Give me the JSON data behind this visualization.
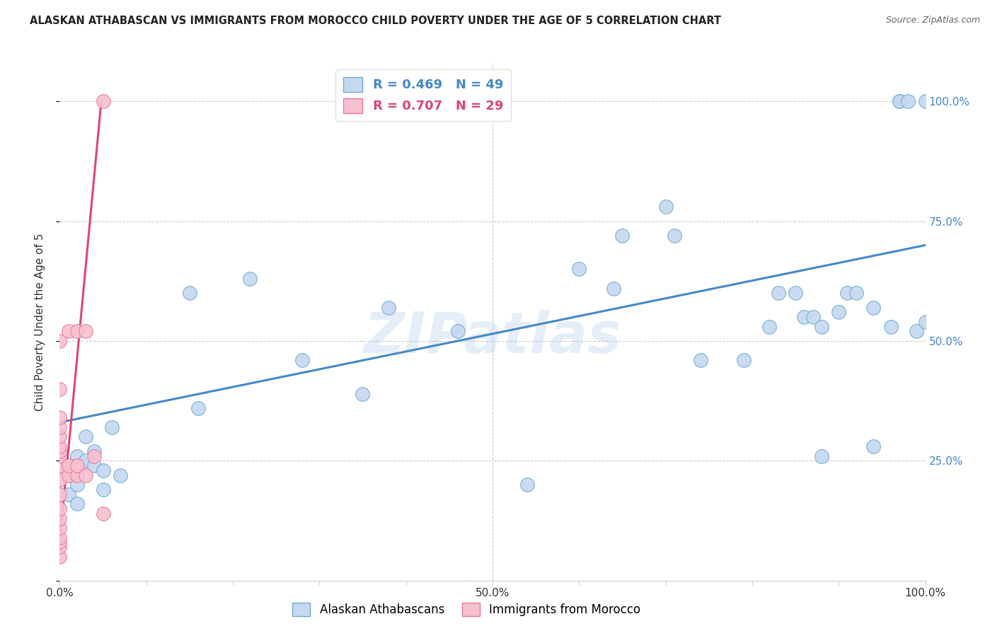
{
  "title": "ALASKAN ATHABASCAN VS IMMIGRANTS FROM MOROCCO CHILD POVERTY UNDER THE AGE OF 5 CORRELATION CHART",
  "source": "Source: ZipAtlas.com",
  "ylabel": "Child Poverty Under the Age of 5",
  "xlabel": "",
  "xlim": [
    0,
    1.0
  ],
  "ylim": [
    0,
    1.08
  ],
  "blue_R": 0.469,
  "blue_N": 49,
  "pink_R": 0.707,
  "pink_N": 29,
  "blue_color": "#c5d8f0",
  "pink_color": "#f7c0ce",
  "blue_edge_color": "#6aaad4",
  "pink_edge_color": "#e87a97",
  "blue_line_color": "#4488cc",
  "pink_line_color": "#dd4477",
  "watermark": "ZIPatlas",
  "legend_label_blue": "Alaskan Athabascans",
  "legend_label_pink": "Immigrants from Morocco",
  "blue_scatter_x": [
    0.01,
    0.01,
    0.01,
    0.02,
    0.02,
    0.02,
    0.02,
    0.03,
    0.03,
    0.04,
    0.04,
    0.05,
    0.05,
    0.06,
    0.07,
    0.15,
    0.16,
    0.22,
    0.28,
    0.35,
    0.38,
    0.46,
    0.54,
    0.6,
    0.64,
    0.65,
    0.7,
    0.71,
    0.74,
    0.79,
    0.82,
    0.83,
    0.85,
    0.86,
    0.87,
    0.88,
    0.88,
    0.9,
    0.91,
    0.92,
    0.94,
    0.94,
    0.96,
    0.97,
    0.97,
    0.98,
    0.99,
    1.0,
    1.0
  ],
  "blue_scatter_y": [
    0.24,
    0.22,
    0.18,
    0.26,
    0.22,
    0.2,
    0.16,
    0.3,
    0.25,
    0.24,
    0.27,
    0.23,
    0.19,
    0.32,
    0.22,
    0.6,
    0.36,
    0.63,
    0.46,
    0.39,
    0.57,
    0.52,
    0.2,
    0.65,
    0.61,
    0.72,
    0.78,
    0.72,
    0.46,
    0.46,
    0.53,
    0.6,
    0.6,
    0.55,
    0.55,
    0.26,
    0.53,
    0.56,
    0.6,
    0.6,
    0.57,
    0.28,
    0.53,
    1.0,
    1.0,
    1.0,
    0.52,
    1.0,
    0.54
  ],
  "pink_scatter_x": [
    0.0,
    0.0,
    0.0,
    0.0,
    0.0,
    0.0,
    0.0,
    0.0,
    0.0,
    0.0,
    0.0,
    0.0,
    0.0,
    0.0,
    0.0,
    0.0,
    0.0,
    0.0,
    0.01,
    0.01,
    0.01,
    0.02,
    0.02,
    0.02,
    0.03,
    0.03,
    0.04,
    0.05,
    0.05
  ],
  "pink_scatter_y": [
    0.05,
    0.07,
    0.08,
    0.09,
    0.11,
    0.13,
    0.15,
    0.18,
    0.21,
    0.24,
    0.26,
    0.27,
    0.28,
    0.3,
    0.32,
    0.34,
    0.4,
    0.5,
    0.22,
    0.24,
    0.52,
    0.22,
    0.24,
    0.52,
    0.22,
    0.52,
    0.26,
    0.14,
    1.0
  ],
  "blue_trendline_x": [
    0.0,
    1.0
  ],
  "blue_trendline_y": [
    0.33,
    0.7
  ],
  "pink_trendline_x": [
    0.0,
    0.048
  ],
  "pink_trendline_y": [
    0.08,
    1.0
  ],
  "grid_color": "#cccccc",
  "background_color": "#ffffff",
  "ytick_positions": [
    0.0,
    0.25,
    0.5,
    0.75,
    1.0
  ],
  "ytick_labels": [
    "",
    "25.0%",
    "50.0%",
    "75.0%",
    "100.0%"
  ],
  "xtick_positions": [
    0.0,
    0.1,
    0.2,
    0.3,
    0.4,
    0.5,
    0.6,
    0.7,
    0.8,
    0.9,
    1.0
  ],
  "xtick_labels": [
    "0.0%",
    "",
    "",
    "",
    "",
    "50.0%",
    "",
    "",
    "",
    "",
    "100.0%"
  ]
}
